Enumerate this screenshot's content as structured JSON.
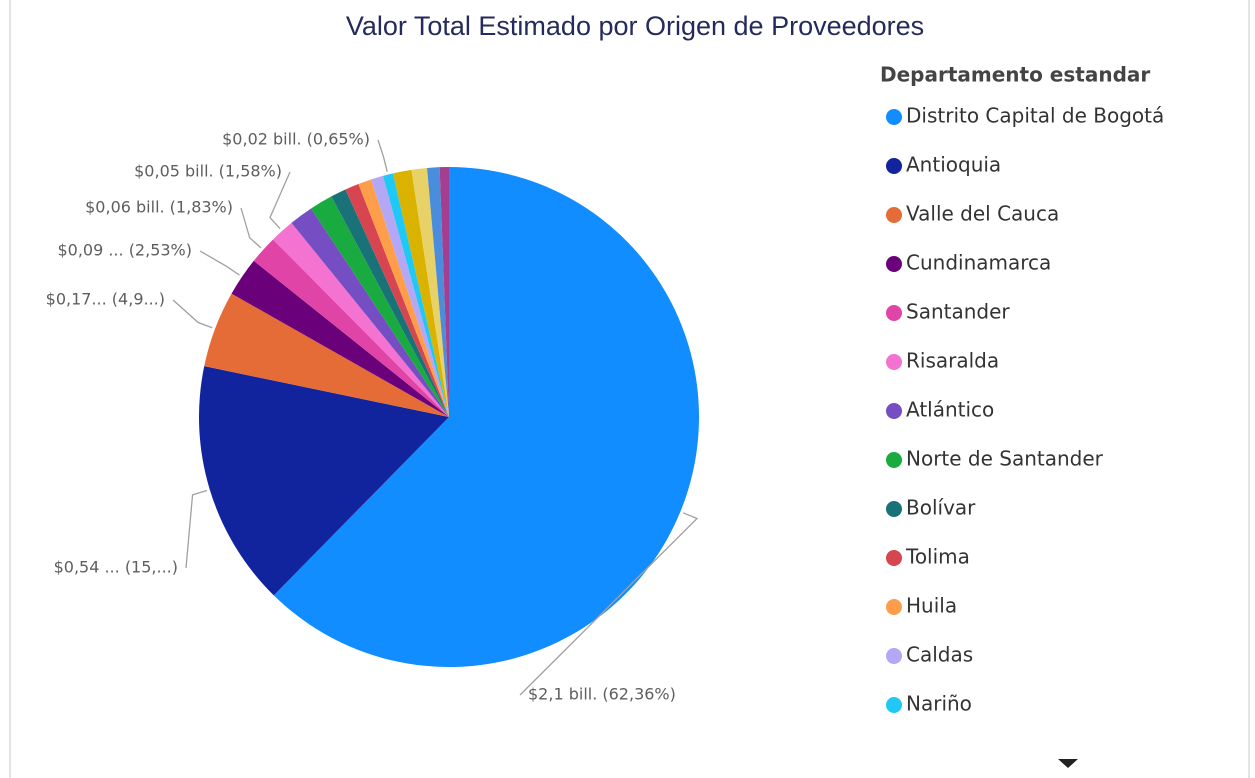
{
  "chart_data": {
    "type": "pie",
    "title": "Valor Total Estimado por Origen de Proveedores",
    "legend_title": "Departamento estandar",
    "categories": [
      "Distrito Capital de Bogotá",
      "Antioquia",
      "Valle del Cauca",
      "Cundinamarca",
      "Santander",
      "Risaralda",
      "Atlántico",
      "Norte de Santander",
      "Bolívar",
      "Tolima",
      "Huila",
      "Caldas",
      "Nariño",
      null,
      null,
      null,
      null
    ],
    "values": [
      62.36,
      15.9,
      4.95,
      2.53,
      1.83,
      1.58,
      1.55,
      1.5,
      1.0,
      0.9,
      0.85,
      0.8,
      0.65,
      1.2,
      1.0,
      0.8,
      0.6
    ],
    "value_labels": [
      "$2,1 bill. (62,36%)",
      "$0,54 ... (15,...)",
      "$0,17... (4,9...)",
      "$0,09 ... (2,53%)",
      "$0,06 bill. (1,83%)",
      "$0,05 bill. (1,58%)",
      null,
      null,
      null,
      null,
      null,
      null,
      "$0,02 bill. (0,65%)",
      null,
      null,
      null,
      null
    ],
    "colors": [
      "#118DFF",
      "#12239E",
      "#E66C37",
      "#6B007B",
      "#E044A7",
      "#F472D0",
      "#744EC2",
      "#1AAB40",
      "#197278",
      "#D64550",
      "#FF9E4A",
      "#B4A7F5",
      "#20C8F5",
      "#D9B300",
      "#E8D166",
      "#4A8DDC",
      "#A43E8F"
    ],
    "legend": "right"
  }
}
